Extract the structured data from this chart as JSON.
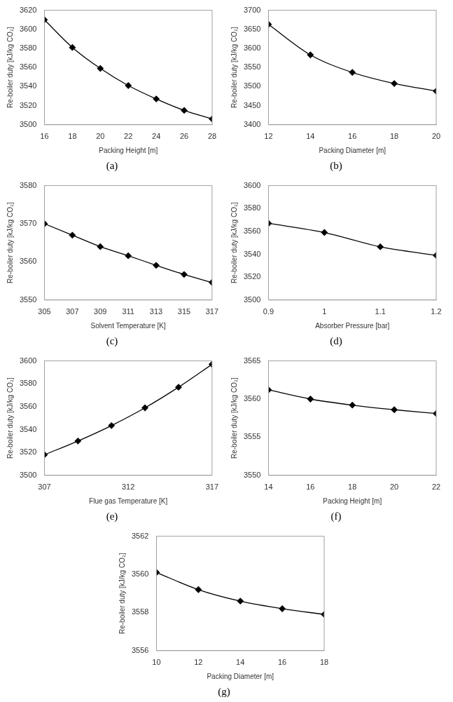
{
  "chart_data": [
    {
      "type": "line",
      "x": [
        16,
        18,
        20,
        22,
        24,
        26,
        28
      ],
      "values": [
        3610,
        3581,
        3559,
        3541,
        3527,
        3515,
        3506
      ],
      "color": "#000000",
      "xlim": [
        16,
        28
      ],
      "xticks": [
        16,
        18,
        20,
        22,
        24,
        26,
        28
      ],
      "ylim": [
        3500,
        3620
      ],
      "yticks": [
        3500,
        3520,
        3540,
        3560,
        3580,
        3600,
        3620
      ],
      "xlabel": "Packing Height [m]",
      "ylabel": "Re-boiler duty [kJ/kg CO₂]",
      "annotations": [
        "(a)"
      ],
      "marker": "diamond",
      "line_style": "solid"
    },
    {
      "type": "line",
      "x": [
        12,
        14,
        16,
        18,
        20
      ],
      "values": [
        3663,
        3583,
        3537,
        3508,
        3488
      ],
      "color": "#000000",
      "xlim": [
        12,
        20
      ],
      "xticks": [
        12,
        14,
        16,
        18,
        20
      ],
      "ylim": [
        3400,
        3700
      ],
      "yticks": [
        3400,
        3450,
        3500,
        3550,
        3600,
        3650,
        3700
      ],
      "xlabel": "Packing Diameter [m]",
      "ylabel": "Re-boiler duty [kJ/kg CO₂]",
      "annotations": [
        "(b)"
      ],
      "marker": "diamond",
      "line_style": "solid"
    },
    {
      "type": "line",
      "x": [
        305,
        307,
        309,
        311,
        313,
        315,
        317
      ],
      "values": [
        3570,
        3567,
        3564,
        3561.6,
        3559.1,
        3556.7,
        3554.6
      ],
      "color": "#000000",
      "xlim": [
        305,
        317
      ],
      "xticks": [
        305,
        307,
        309,
        311,
        313,
        315,
        317
      ],
      "ylim": [
        3550,
        3580
      ],
      "yticks": [
        3550,
        3560,
        3570,
        3580
      ],
      "xlabel": "Solvent Temperature [K]",
      "ylabel": "Re-boiler duty [kJ/kg CO₂]",
      "annotations": [
        "(c)"
      ],
      "marker": "diamond",
      "line_style": "solid"
    },
    {
      "type": "line",
      "x": [
        0.9,
        1,
        1.1,
        1.2
      ],
      "values": [
        3567,
        3559,
        3546.5,
        3539
      ],
      "color": "#000000",
      "xlim": [
        0.9,
        1.2
      ],
      "xticks": [
        0.9,
        1,
        1.1,
        1.2
      ],
      "ylim": [
        3500,
        3600
      ],
      "yticks": [
        3500,
        3520,
        3540,
        3560,
        3580,
        3600
      ],
      "xlabel": "Absorber Pressure [bar]",
      "ylabel": "Re-boiler duty [kJ/kg CO₂]",
      "annotations": [
        "(d)"
      ],
      "marker": "diamond",
      "line_style": "solid"
    },
    {
      "type": "line",
      "x": [
        307,
        309,
        311,
        313,
        315,
        317
      ],
      "values": [
        3518,
        3530,
        3543.5,
        3559,
        3577,
        3597
      ],
      "color": "#000000",
      "xlim": [
        307,
        317
      ],
      "xticks": [
        307,
        312,
        317
      ],
      "ylim": [
        3500,
        3600
      ],
      "yticks": [
        3500,
        3520,
        3540,
        3560,
        3580,
        3600
      ],
      "xlabel": "Flue gas Temperature [K]",
      "ylabel": "Re-boiler duty [kJ/kg CO₂]",
      "annotations": [
        "(e)"
      ],
      "marker": "diamond",
      "line_style": "solid"
    },
    {
      "type": "line",
      "x": [
        14,
        16,
        18,
        20,
        22
      ],
      "values": [
        3561.2,
        3560,
        3559.2,
        3558.6,
        3558.1
      ],
      "color": "#000000",
      "xlim": [
        14,
        22
      ],
      "xticks": [
        14,
        16,
        18,
        20,
        22
      ],
      "ylim": [
        3550,
        3565
      ],
      "yticks": [
        3550,
        3555,
        3560,
        3565
      ],
      "xlabel": "Packing Height [m]",
      "ylabel": "Re-boiler duty [kJ/kg CO₂]",
      "annotations": [
        "(f)"
      ],
      "marker": "diamond",
      "line_style": "solid"
    },
    {
      "type": "line",
      "x": [
        10,
        12,
        14,
        16,
        18
      ],
      "values": [
        3560.1,
        3559.2,
        3558.6,
        3558.2,
        3557.9
      ],
      "color": "#000000",
      "xlim": [
        10,
        18
      ],
      "xticks": [
        10,
        12,
        14,
        16,
        18
      ],
      "ylim": [
        3556,
        3562
      ],
      "yticks": [
        3556,
        3558,
        3560,
        3562
      ],
      "xlabel": "Packing Diameter [m]",
      "ylabel": "Re-boiler duty [kJ/kg CO₂]",
      "annotations": [
        "(g)"
      ],
      "marker": "diamond",
      "line_style": "solid"
    }
  ]
}
